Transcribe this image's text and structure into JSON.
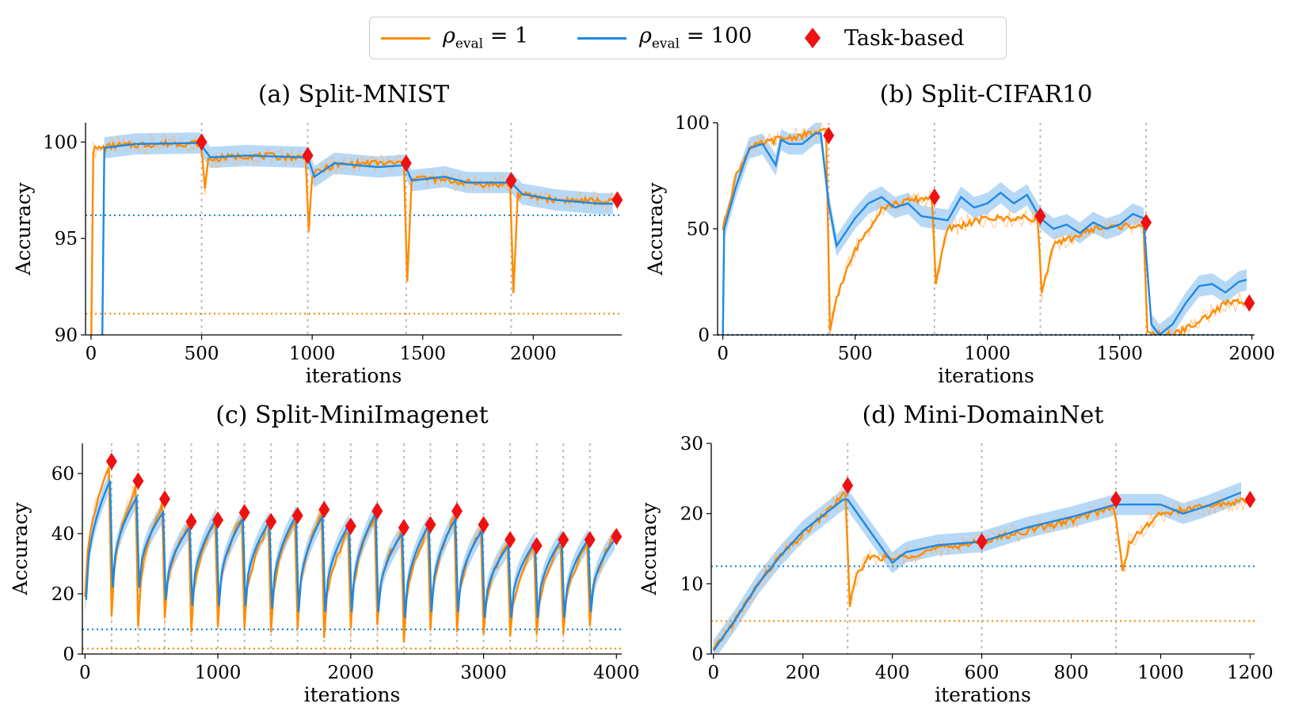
{
  "legend": {
    "items": [
      {
        "symbol": "ρ",
        "sub": "eval",
        "rest": " = 1",
        "color": "#ff8c00"
      },
      {
        "symbol": "ρ",
        "sub": "eval",
        "rest": " = 100",
        "color": "#1e88e5"
      },
      {
        "label": "Task-based",
        "color": "#ee1111"
      }
    ]
  },
  "chart_data": [
    {
      "type": "line",
      "title": "(a) Split-MNIST",
      "xlabel": "iterations",
      "ylabel": "Accuracy",
      "xlim": [
        -25,
        2400
      ],
      "ylim": [
        90,
        101
      ],
      "xticks": [
        0,
        500,
        1000,
        1500,
        2000
      ],
      "yticks": [
        90,
        95,
        100
      ],
      "task_boundaries": [
        500,
        980,
        1425,
        1900
      ],
      "baselines": {
        "rho_eval_1": 91.1,
        "rho_eval_100": 96.2
      },
      "series": [
        {
          "name": "ρ_eval = 1",
          "color": "#ff8c00",
          "points": [
            [
              0,
              89
            ],
            [
              10,
              99.6
            ],
            [
              100,
              99.8
            ],
            [
              300,
              99.9
            ],
            [
              490,
              99.95
            ],
            [
              505,
              99.2
            ],
            [
              515,
              97.5
            ],
            [
              530,
              99.1
            ],
            [
              700,
              99.3
            ],
            [
              970,
              99.2
            ],
            [
              985,
              95.5
            ],
            [
              1000,
              98.3
            ],
            [
              1100,
              98.8
            ],
            [
              1250,
              98.9
            ],
            [
              1415,
              98.9
            ],
            [
              1430,
              92.6
            ],
            [
              1450,
              98.2
            ],
            [
              1600,
              98.0
            ],
            [
              1800,
              97.8
            ],
            [
              1895,
              97.8
            ],
            [
              1910,
              92.2
            ],
            [
              1930,
              97.3
            ],
            [
              2100,
              97.0
            ],
            [
              2380,
              96.9
            ]
          ]
        },
        {
          "name": "ρ_eval = 100",
          "color": "#1e88e5",
          "points": [
            [
              50,
              89
            ],
            [
              60,
              99.7
            ],
            [
              200,
              99.9
            ],
            [
              490,
              99.95
            ],
            [
              540,
              99.2
            ],
            [
              700,
              99.3
            ],
            [
              980,
              99.2
            ],
            [
              1010,
              98.2
            ],
            [
              1100,
              98.9
            ],
            [
              1300,
              98.7
            ],
            [
              1420,
              98.8
            ],
            [
              1450,
              98.0
            ],
            [
              1600,
              98.2
            ],
            [
              1700,
              97.9
            ],
            [
              1900,
              97.9
            ],
            [
              1950,
              97.3
            ],
            [
              2100,
              97.0
            ],
            [
              2300,
              96.8
            ],
            [
              2360,
              96.8
            ]
          ]
        }
      ],
      "task_based": {
        "x": [
          500,
          980,
          1425,
          1900,
          2380
        ],
        "y": [
          100,
          99.3,
          98.9,
          98.0,
          97.0
        ]
      }
    },
    {
      "type": "line",
      "title": "(b) Split-CIFAR10",
      "xlabel": "iterations",
      "ylabel": "Accuracy",
      "xlim": [
        -20,
        2010
      ],
      "ylim": [
        0,
        100
      ],
      "xticks": [
        0,
        500,
        1000,
        1500,
        2000
      ],
      "yticks": [
        0,
        50,
        100
      ],
      "task_boundaries": [
        400,
        800,
        1200,
        1600
      ],
      "baselines": {
        "rho_eval_1": 0,
        "rho_eval_100": 0
      },
      "series": [
        {
          "name": "ρ_eval = 1",
          "color": "#ff8c00",
          "points": [
            [
              0,
              50
            ],
            [
              50,
              75
            ],
            [
              100,
              88
            ],
            [
              200,
              92
            ],
            [
              300,
              94
            ],
            [
              390,
              96
            ],
            [
              405,
              2
            ],
            [
              430,
              18
            ],
            [
              500,
              40
            ],
            [
              600,
              60
            ],
            [
              700,
              63
            ],
            [
              790,
              65
            ],
            [
              805,
              25
            ],
            [
              850,
              50
            ],
            [
              1000,
              55
            ],
            [
              1190,
              55
            ],
            [
              1205,
              20
            ],
            [
              1250,
              42
            ],
            [
              1400,
              50
            ],
            [
              1590,
              52
            ],
            [
              1605,
              0
            ],
            [
              1700,
              0
            ],
            [
              1800,
              6
            ],
            [
              1900,
              15
            ],
            [
              1990,
              16
            ]
          ]
        },
        {
          "name": "ρ_eval = 100",
          "color": "#1e88e5",
          "points": [
            [
              0,
              0
            ],
            [
              5,
              50
            ],
            [
              50,
              70
            ],
            [
              100,
              88
            ],
            [
              150,
              90
            ],
            [
              200,
              80
            ],
            [
              220,
              92
            ],
            [
              250,
              90
            ],
            [
              300,
              90
            ],
            [
              350,
              95
            ],
            [
              370,
              95
            ],
            [
              400,
              62
            ],
            [
              430,
              42
            ],
            [
              500,
              55
            ],
            [
              550,
              62
            ],
            [
              600,
              65
            ],
            [
              650,
              60
            ],
            [
              700,
              62
            ],
            [
              750,
              56
            ],
            [
              800,
              55
            ],
            [
              850,
              54
            ],
            [
              900,
              65
            ],
            [
              950,
              60
            ],
            [
              1000,
              62
            ],
            [
              1050,
              67
            ],
            [
              1100,
              62
            ],
            [
              1150,
              66
            ],
            [
              1200,
              55
            ],
            [
              1250,
              50
            ],
            [
              1300,
              52
            ],
            [
              1350,
              48
            ],
            [
              1400,
              53
            ],
            [
              1450,
              50
            ],
            [
              1500,
              52
            ],
            [
              1550,
              57
            ],
            [
              1590,
              55
            ],
            [
              1620,
              5
            ],
            [
              1650,
              0
            ],
            [
              1700,
              5
            ],
            [
              1750,
              15
            ],
            [
              1800,
              23
            ],
            [
              1850,
              24
            ],
            [
              1900,
              20
            ],
            [
              1950,
              25
            ],
            [
              1980,
              26
            ]
          ]
        }
      ],
      "task_based": {
        "x": [
          400,
          800,
          1200,
          1600,
          1990
        ],
        "y": [
          94,
          65,
          56,
          53,
          15
        ]
      }
    },
    {
      "type": "line",
      "title": "(c) Split-MiniImagenet",
      "xlabel": "iterations",
      "ylabel": "Accuracy",
      "xlim": [
        -20,
        4040
      ],
      "ylim": [
        0,
        70
      ],
      "xticks": [
        0,
        1000,
        2000,
        3000,
        4000
      ],
      "yticks": [
        0,
        20,
        40,
        60
      ],
      "task_boundaries": [
        200,
        400,
        600,
        800,
        1000,
        1200,
        1400,
        1600,
        1800,
        2000,
        2200,
        2400,
        2600,
        2800,
        3000,
        3200,
        3400,
        3600,
        3800
      ],
      "baselines": {
        "rho_eval_1": 1.8,
        "rho_eval_100": 8.2
      },
      "series": [
        {
          "name": "ρ_eval = 1",
          "color": "#ff8c00",
          "peaks": [
            64,
            57,
            51,
            44,
            45,
            47,
            44,
            46,
            48,
            42,
            47,
            42,
            43,
            47,
            43,
            38,
            36,
            38,
            38,
            40
          ],
          "drops": [
            12,
            10,
            12,
            8,
            10,
            8,
            8,
            8,
            6,
            8,
            10,
            4,
            8,
            8,
            6,
            5,
            6,
            6,
            10
          ]
        },
        {
          "name": "ρ_eval = 100",
          "color": "#1e88e5",
          "peaks": [
            59,
            53,
            48,
            43,
            46,
            46,
            45,
            47,
            47,
            44,
            48,
            41,
            44,
            46,
            42,
            37,
            38,
            39,
            39,
            39
          ],
          "drops": [
            22,
            22,
            18,
            16,
            16,
            16,
            15,
            14,
            14,
            14,
            14,
            12,
            14,
            14,
            12,
            12,
            12,
            12,
            14
          ]
        }
      ],
      "task_based": {
        "x": [
          200,
          400,
          600,
          800,
          1000,
          1200,
          1400,
          1600,
          1800,
          2000,
          2200,
          2400,
          2600,
          2800,
          3000,
          3200,
          3400,
          3600,
          3800,
          4000
        ],
        "y": [
          64,
          57.5,
          51.5,
          44,
          44.5,
          47,
          44,
          46,
          48,
          42.5,
          47.5,
          42,
          43,
          47.5,
          43,
          38,
          36,
          38,
          38,
          39
        ]
      }
    },
    {
      "type": "line",
      "title": "(d) Mini-DomainNet",
      "xlabel": "iterations",
      "ylabel": "Accuracy",
      "xlim": [
        -5,
        1210
      ],
      "ylim": [
        0,
        30
      ],
      "xticks": [
        0,
        200,
        400,
        600,
        800,
        1000,
        1200
      ],
      "yticks": [
        0,
        10,
        20,
        30
      ],
      "task_boundaries": [
        300,
        600,
        900
      ],
      "baselines": {
        "rho_eval_1": 4.7,
        "rho_eval_100": 12.5
      },
      "series": [
        {
          "name": "ρ_eval = 1",
          "color": "#ff8c00",
          "points": [
            [
              0,
              0.5
            ],
            [
              50,
              5
            ],
            [
              100,
              10
            ],
            [
              150,
              14
            ],
            [
              200,
              17
            ],
            [
              250,
              20
            ],
            [
              295,
              23
            ],
            [
              305,
              7
            ],
            [
              320,
              11
            ],
            [
              350,
              14
            ],
            [
              400,
              13.5
            ],
            [
              500,
              15
            ],
            [
              600,
              16
            ],
            [
              700,
              17.5
            ],
            [
              800,
              19
            ],
            [
              895,
              21
            ],
            [
              905,
              17
            ],
            [
              915,
              11.5
            ],
            [
              930,
              16
            ],
            [
              1000,
              20
            ],
            [
              1100,
              21
            ],
            [
              1200,
              22
            ]
          ]
        },
        {
          "name": "ρ_eval = 100",
          "color": "#1e88e5",
          "points": [
            [
              0,
              0.5
            ],
            [
              50,
              5
            ],
            [
              100,
              10
            ],
            [
              150,
              14
            ],
            [
              200,
              17.5
            ],
            [
              250,
              20
            ],
            [
              290,
              22
            ],
            [
              300,
              22
            ],
            [
              400,
              13
            ],
            [
              430,
              14.5
            ],
            [
              500,
              15.5
            ],
            [
              600,
              16
            ],
            [
              700,
              18
            ],
            [
              800,
              19.5
            ],
            [
              900,
              21.3
            ],
            [
              1000,
              21.3
            ],
            [
              1050,
              20
            ],
            [
              1100,
              21
            ],
            [
              1180,
              23
            ]
          ]
        }
      ],
      "task_based": {
        "x": [
          300,
          600,
          900,
          1200
        ],
        "y": [
          24,
          16,
          22,
          22
        ]
      }
    }
  ]
}
